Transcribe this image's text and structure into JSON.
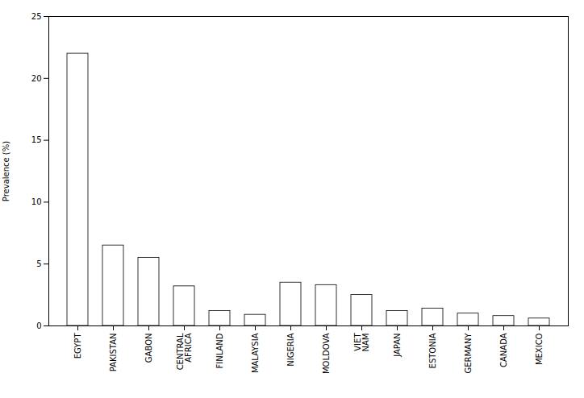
{
  "chart_data": {
    "type": "bar",
    "categories": [
      "EGYPT",
      "PAKISTAN",
      "GABON",
      "CENTRAL\nAFRICA",
      "FINLAND",
      "MALAYSIA",
      "NIGERIA",
      "MOLDOVA",
      "VIET\nNAM",
      "JAPAN",
      "ESTONIA",
      "GERMANY",
      "CANADA",
      "MEXICO"
    ],
    "values": [
      22.0,
      6.5,
      5.5,
      3.2,
      1.2,
      0.9,
      3.5,
      3.3,
      2.5,
      1.2,
      1.4,
      1.0,
      0.8,
      0.6
    ],
    "color": "white",
    "ylabel": "Prevalence (%)",
    "ylim": [
      0,
      25
    ],
    "yticks": [
      0,
      5,
      10,
      15,
      20,
      25
    ],
    "grid": false
  }
}
